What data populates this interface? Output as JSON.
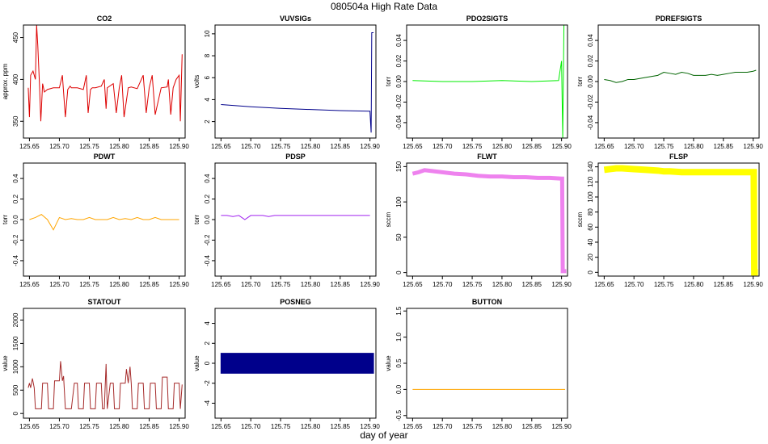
{
  "figure": {
    "title": "080504a   High Rate Data",
    "xlabel": "day of year"
  },
  "chart_data": [
    {
      "type": "line",
      "title": "CO2",
      "ylabel": "approx. ppm",
      "color": "#dd0000",
      "xlim": [
        125.64,
        125.91
      ],
      "ylim": [
        330,
        465
      ],
      "xticks": [
        125.65,
        125.7,
        125.75,
        125.8,
        125.85,
        125.9
      ],
      "xtick_labels": [
        "125.65",
        "125.70",
        "125.75",
        "125.80",
        "125.85",
        "125.90"
      ],
      "yticks": [
        350,
        400,
        450
      ],
      "ytick_labels": [
        "350",
        "400",
        "450"
      ],
      "series": [
        {
          "x": [
            125.648,
            125.65,
            125.652,
            125.656,
            125.66,
            125.662,
            125.664,
            125.667,
            125.669,
            125.672,
            125.675,
            125.68,
            125.69,
            125.7,
            125.705,
            125.71,
            125.714,
            125.718,
            125.72,
            125.73,
            125.74,
            125.745,
            125.748,
            125.752,
            125.755,
            125.76,
            125.77,
            125.775,
            125.778,
            125.78,
            125.79,
            125.795,
            125.8,
            125.804,
            125.808,
            125.815,
            125.82,
            125.83,
            125.84,
            125.845,
            125.85,
            125.855,
            125.86,
            125.87,
            125.88,
            125.882,
            125.886,
            125.89,
            125.895,
            125.9,
            125.902,
            125.905
          ],
          "y": [
            390,
            355,
            405,
            410,
            400,
            465,
            440,
            390,
            350,
            395,
            385,
            388,
            390,
            390,
            405,
            355,
            388,
            392,
            390,
            390,
            388,
            405,
            360,
            388,
            390,
            390,
            392,
            400,
            365,
            390,
            395,
            360,
            390,
            405,
            355,
            390,
            391,
            389,
            405,
            360,
            390,
            405,
            358,
            390,
            391,
            400,
            358,
            390,
            400,
            405,
            350,
            430
          ]
        }
      ]
    },
    {
      "type": "line",
      "title": "VUVSIGs",
      "ylabel": "volts",
      "color": "#00008b",
      "xlim": [
        125.64,
        125.91
      ],
      "ylim": [
        0.5,
        10.8
      ],
      "xticks": [
        125.65,
        125.7,
        125.75,
        125.8,
        125.85,
        125.9
      ],
      "xtick_labels": [
        "125.65",
        "125.70",
        "125.75",
        "125.80",
        "125.85",
        "125.90"
      ],
      "yticks": [
        2,
        4,
        6,
        8,
        10
      ],
      "ytick_labels": [
        "2",
        "4",
        "6",
        "8",
        "10"
      ],
      "series": [
        {
          "x": [
            125.65,
            125.7,
            125.75,
            125.8,
            125.85,
            125.9,
            125.902,
            125.903,
            125.904,
            125.906
          ],
          "y": [
            3.55,
            3.35,
            3.2,
            3.1,
            3.0,
            2.95,
            1.0,
            10.1,
            10.1,
            10.1
          ]
        }
      ]
    },
    {
      "type": "line",
      "title": "PDO2SIGTS",
      "ylabel": "torr",
      "color": "#00ee00",
      "xlim": [
        125.64,
        125.91
      ],
      "ylim": [
        -0.055,
        0.055
      ],
      "xticks": [
        125.65,
        125.7,
        125.75,
        125.8,
        125.85,
        125.9
      ],
      "xtick_labels": [
        "125.65",
        "125.70",
        "125.75",
        "125.80",
        "125.85",
        "125.90"
      ],
      "yticks": [
        -0.04,
        -0.02,
        0.0,
        0.02,
        0.04
      ],
      "ytick_labels": [
        "-0.04",
        "-0.02",
        "0.00",
        "0.02",
        "0.04"
      ],
      "series": [
        {
          "x": [
            125.65,
            125.7,
            125.75,
            125.8,
            125.85,
            125.895,
            125.9,
            125.902,
            125.904
          ],
          "y": [
            0.001,
            0.0,
            0.0,
            0.001,
            0.0,
            0.001,
            0.02,
            -0.055,
            0.055
          ]
        }
      ]
    },
    {
      "type": "line",
      "title": "PDREFSIGTS",
      "ylabel": "torr",
      "color": "#006400",
      "xlim": [
        125.64,
        125.91
      ],
      "ylim": [
        -0.055,
        0.055
      ],
      "xticks": [
        125.65,
        125.7,
        125.75,
        125.8,
        125.85,
        125.9
      ],
      "xtick_labels": [
        "125.65",
        "125.70",
        "125.75",
        "125.80",
        "125.85",
        "125.90"
      ],
      "yticks": [
        -0.04,
        -0.02,
        0.0,
        0.02,
        0.04
      ],
      "ytick_labels": [
        "-0.04",
        "-0.02",
        "0.00",
        "0.02",
        "0.04"
      ],
      "series": [
        {
          "x": [
            125.65,
            125.66,
            125.67,
            125.68,
            125.69,
            125.7,
            125.72,
            125.74,
            125.75,
            125.76,
            125.77,
            125.78,
            125.79,
            125.8,
            125.81,
            125.82,
            125.83,
            125.84,
            125.85,
            125.86,
            125.87,
            125.88,
            125.89,
            125.9,
            125.905
          ],
          "y": [
            0.002,
            0.001,
            -0.001,
            0.0,
            0.002,
            0.002,
            0.004,
            0.006,
            0.009,
            0.008,
            0.007,
            0.009,
            0.008,
            0.006,
            0.006,
            0.006,
            0.007,
            0.006,
            0.007,
            0.008,
            0.009,
            0.009,
            0.009,
            0.01,
            0.011
          ]
        }
      ]
    },
    {
      "type": "line",
      "title": "PDWT",
      "ylabel": "torr",
      "color": "#ffa500",
      "xlim": [
        125.64,
        125.91
      ],
      "ylim": [
        -0.55,
        0.55
      ],
      "xticks": [
        125.65,
        125.7,
        125.75,
        125.8,
        125.85,
        125.9
      ],
      "xtick_labels": [
        "125.65",
        "125.70",
        "125.75",
        "125.80",
        "125.85",
        "125.90"
      ],
      "yticks": [
        -0.4,
        -0.2,
        0.0,
        0.2,
        0.4
      ],
      "ytick_labels": [
        "-0.4",
        "-0.2",
        "0.0",
        "0.2",
        "0.4"
      ],
      "series": [
        {
          "x": [
            125.65,
            125.66,
            125.67,
            125.68,
            125.69,
            125.7,
            125.71,
            125.72,
            125.73,
            125.74,
            125.75,
            125.76,
            125.77,
            125.78,
            125.79,
            125.8,
            125.81,
            125.82,
            125.83,
            125.84,
            125.85,
            125.86,
            125.87,
            125.88,
            125.89,
            125.9
          ],
          "y": [
            0.0,
            0.02,
            0.05,
            0.0,
            -0.1,
            0.02,
            0.0,
            0.01,
            0.0,
            0.0,
            0.02,
            0.0,
            0.0,
            0.0,
            0.02,
            0.0,
            0.01,
            0.0,
            0.02,
            0.0,
            0.0,
            0.02,
            0.0,
            0.0,
            0.0,
            0.0
          ]
        }
      ]
    },
    {
      "type": "line",
      "title": "PDSP",
      "ylabel": "torr",
      "color": "#a020f0",
      "xlim": [
        125.64,
        125.91
      ],
      "ylim": [
        -0.55,
        0.55
      ],
      "xticks": [
        125.65,
        125.7,
        125.75,
        125.8,
        125.85,
        125.9
      ],
      "xtick_labels": [
        "125.65",
        "125.70",
        "125.75",
        "125.80",
        "125.85",
        "125.90"
      ],
      "yticks": [
        -0.4,
        -0.2,
        0.0,
        0.2,
        0.4
      ],
      "ytick_labels": [
        "-0.4",
        "-0.2",
        "0.0",
        "0.2",
        "0.4"
      ],
      "series": [
        {
          "x": [
            125.65,
            125.66,
            125.67,
            125.68,
            125.69,
            125.7,
            125.71,
            125.72,
            125.73,
            125.74,
            125.75,
            125.76,
            125.77,
            125.78,
            125.79,
            125.8,
            125.81,
            125.82,
            125.83,
            125.84,
            125.85,
            125.86,
            125.87,
            125.88,
            125.89,
            125.9
          ],
          "y": [
            0.04,
            0.04,
            0.03,
            0.04,
            0.0,
            0.04,
            0.04,
            0.04,
            0.03,
            0.04,
            0.04,
            0.04,
            0.04,
            0.04,
            0.04,
            0.04,
            0.04,
            0.04,
            0.04,
            0.04,
            0.04,
            0.04,
            0.04,
            0.04,
            0.04,
            0.04
          ]
        }
      ]
    },
    {
      "type": "line",
      "title": "FLWT",
      "ylabel": "sccm",
      "color": "#ee82ee",
      "xlim": [
        125.64,
        125.91
      ],
      "ylim": [
        -5,
        155
      ],
      "xticks": [
        125.65,
        125.7,
        125.75,
        125.8,
        125.85,
        125.9
      ],
      "xtick_labels": [
        "125.65",
        "125.70",
        "125.75",
        "125.80",
        "125.85",
        "125.90"
      ],
      "yticks": [
        0,
        50,
        100,
        150
      ],
      "ytick_labels": [
        "0",
        "50",
        "100",
        "150"
      ],
      "series": [
        {
          "x": [
            125.65,
            125.66,
            125.67,
            125.68,
            125.7,
            125.72,
            125.74,
            125.75,
            125.76,
            125.78,
            125.8,
            125.82,
            125.84,
            125.86,
            125.88,
            125.9,
            125.901,
            125.902,
            125.908
          ],
          "y": [
            140,
            142,
            145,
            144,
            142,
            140,
            139,
            138,
            137,
            136,
            136,
            135,
            135,
            134,
            134,
            133,
            133,
            2,
            2
          ]
        }
      ]
    },
    {
      "type": "line",
      "title": "FLSP",
      "ylabel": "sccm",
      "color": "#ffff00",
      "xlim": [
        125.64,
        125.91
      ],
      "ylim": [
        -5,
        145
      ],
      "xticks": [
        125.65,
        125.7,
        125.75,
        125.8,
        125.85,
        125.9
      ],
      "xtick_labels": [
        "125.65",
        "125.70",
        "125.75",
        "125.80",
        "125.85",
        "125.90"
      ],
      "yticks": [
        0,
        20,
        40,
        60,
        80,
        100,
        120,
        140
      ],
      "ytick_labels": [
        "0",
        "20",
        "40",
        "60",
        "80",
        "100",
        "120",
        "140"
      ],
      "series": [
        {
          "x": [
            125.65,
            125.66,
            125.67,
            125.68,
            125.7,
            125.72,
            125.74,
            125.75,
            125.76,
            125.78,
            125.8,
            125.82,
            125.84,
            125.86,
            125.88,
            125.9,
            125.901,
            125.902,
            125.908
          ],
          "y": [
            136,
            137,
            138,
            138,
            137,
            136,
            135,
            134,
            134,
            133,
            133,
            133,
            133,
            133,
            133,
            133,
            133,
            0,
            0
          ]
        }
      ]
    },
    {
      "type": "line",
      "title": "STATOUT",
      "ylabel": "value",
      "color": "#a52a2a",
      "xlim": [
        125.64,
        125.91
      ],
      "ylim": [
        -100,
        2250
      ],
      "xticks": [
        125.65,
        125.7,
        125.75,
        125.8,
        125.85,
        125.9
      ],
      "xtick_labels": [
        "125.65",
        "125.70",
        "125.75",
        "125.80",
        "125.85",
        "125.90"
      ],
      "yticks": [
        0,
        500,
        1000,
        1500,
        2000
      ],
      "ytick_labels": [
        "0",
        "500",
        "1000",
        "1500",
        "2000"
      ],
      "series": [
        {
          "x": [
            125.648,
            125.65,
            125.652,
            125.655,
            125.658,
            125.66,
            125.665,
            125.67,
            125.672,
            125.68,
            125.682,
            125.69,
            125.692,
            125.7,
            125.702,
            125.705,
            125.707,
            125.71,
            125.712,
            125.72,
            125.725,
            125.73,
            125.732,
            125.74,
            125.742,
            125.75,
            125.752,
            125.76,
            125.762,
            125.77,
            125.772,
            125.775,
            125.778,
            125.78,
            125.785,
            125.79,
            125.792,
            125.8,
            125.802,
            125.81,
            125.812,
            125.815,
            125.818,
            125.82,
            125.822,
            125.83,
            125.832,
            125.84,
            125.842,
            125.85,
            125.852,
            125.86,
            125.862,
            125.87,
            125.872,
            125.88,
            125.882,
            125.89,
            125.892,
            125.9,
            125.902,
            125.905
          ],
          "y": [
            550,
            650,
            550,
            750,
            550,
            100,
            100,
            100,
            650,
            650,
            100,
            100,
            700,
            700,
            1120,
            700,
            800,
            100,
            100,
            100,
            650,
            650,
            100,
            100,
            650,
            650,
            100,
            100,
            650,
            650,
            100,
            100,
            1060,
            100,
            650,
            650,
            100,
            100,
            650,
            650,
            950,
            650,
            1000,
            650,
            100,
            100,
            650,
            650,
            100,
            100,
            650,
            650,
            100,
            100,
            780,
            780,
            100,
            100,
            650,
            650,
            100,
            620
          ]
        }
      ]
    },
    {
      "type": "area",
      "title": "POSNEG",
      "ylabel": "value",
      "color": "#00008b",
      "xlim": [
        125.64,
        125.91
      ],
      "ylim": [
        -5.5,
        5.5
      ],
      "xticks": [
        125.65,
        125.7,
        125.75,
        125.8,
        125.85,
        125.9
      ],
      "xtick_labels": [
        "125.65",
        "125.70",
        "125.75",
        "125.80",
        "125.85",
        "125.90"
      ],
      "yticks": [
        -4,
        -2,
        0,
        2,
        4
      ],
      "ytick_labels": [
        "-4",
        "-2",
        "0",
        "2",
        "4"
      ],
      "series": [
        {
          "x": [
            125.65,
            125.906
          ],
          "upper": [
            1,
            1
          ],
          "lower": [
            -1,
            -1
          ]
        }
      ]
    },
    {
      "type": "line",
      "title": "BUTTON",
      "ylabel": "value",
      "color": "#ffa500",
      "xlim": [
        125.64,
        125.91
      ],
      "ylim": [
        -0.55,
        1.55
      ],
      "xticks": [
        125.65,
        125.7,
        125.75,
        125.8,
        125.85,
        125.9
      ],
      "xtick_labels": [
        "125.65",
        "125.70",
        "125.75",
        "125.80",
        "125.85",
        "125.90"
      ],
      "yticks": [
        -0.5,
        0.0,
        0.5,
        1.0,
        1.5
      ],
      "ytick_labels": [
        "-0.5",
        "0.0",
        "0.5",
        "1.0",
        "1.5"
      ],
      "series": [
        {
          "x": [
            125.65,
            125.906
          ],
          "y": [
            0,
            0
          ]
        }
      ]
    }
  ]
}
